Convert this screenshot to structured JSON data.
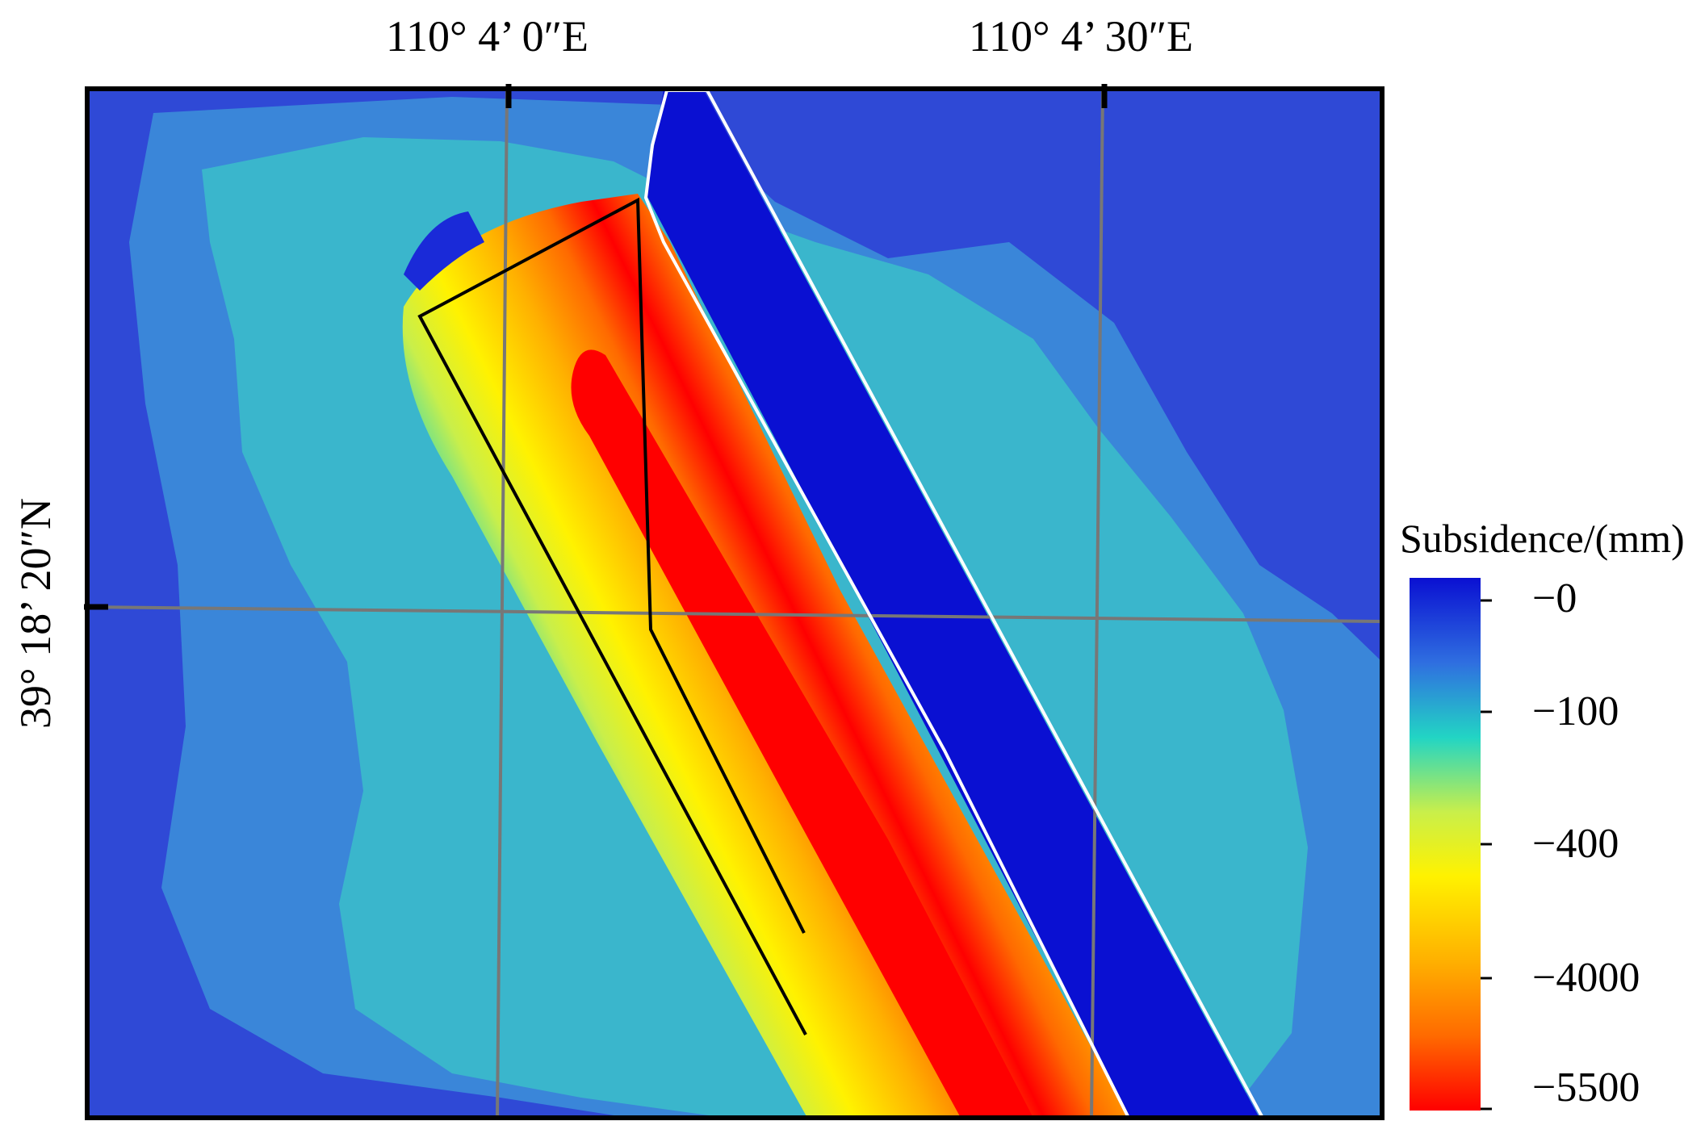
{
  "map": {
    "graticule": {
      "longitudes": [
        "110°  4’ 0″E",
        "110°  4’ 30″E"
      ],
      "latitudes": [
        "39°  18’ 20″N"
      ]
    },
    "colors": {
      "background_blue": "#2f49d6",
      "outer_teal": "#3ab6cc",
      "mid_blue": "#3a86d9",
      "deep_blue": "#0a10d2",
      "graticule_line": "#777777",
      "panel_outline": "#000000",
      "boundary_white": "#ffffff"
    }
  },
  "legend": {
    "title": "Subsidence/(mm)",
    "ticks": [
      "−0",
      "−100",
      "−400",
      "−4000",
      "−5500"
    ],
    "gradient": [
      "#0a10d2",
      "#2f6fe0",
      "#22d5c4",
      "#c9ef4a",
      "#fff200",
      "#ffb000",
      "#ff6a00",
      "#ff0000"
    ]
  }
}
